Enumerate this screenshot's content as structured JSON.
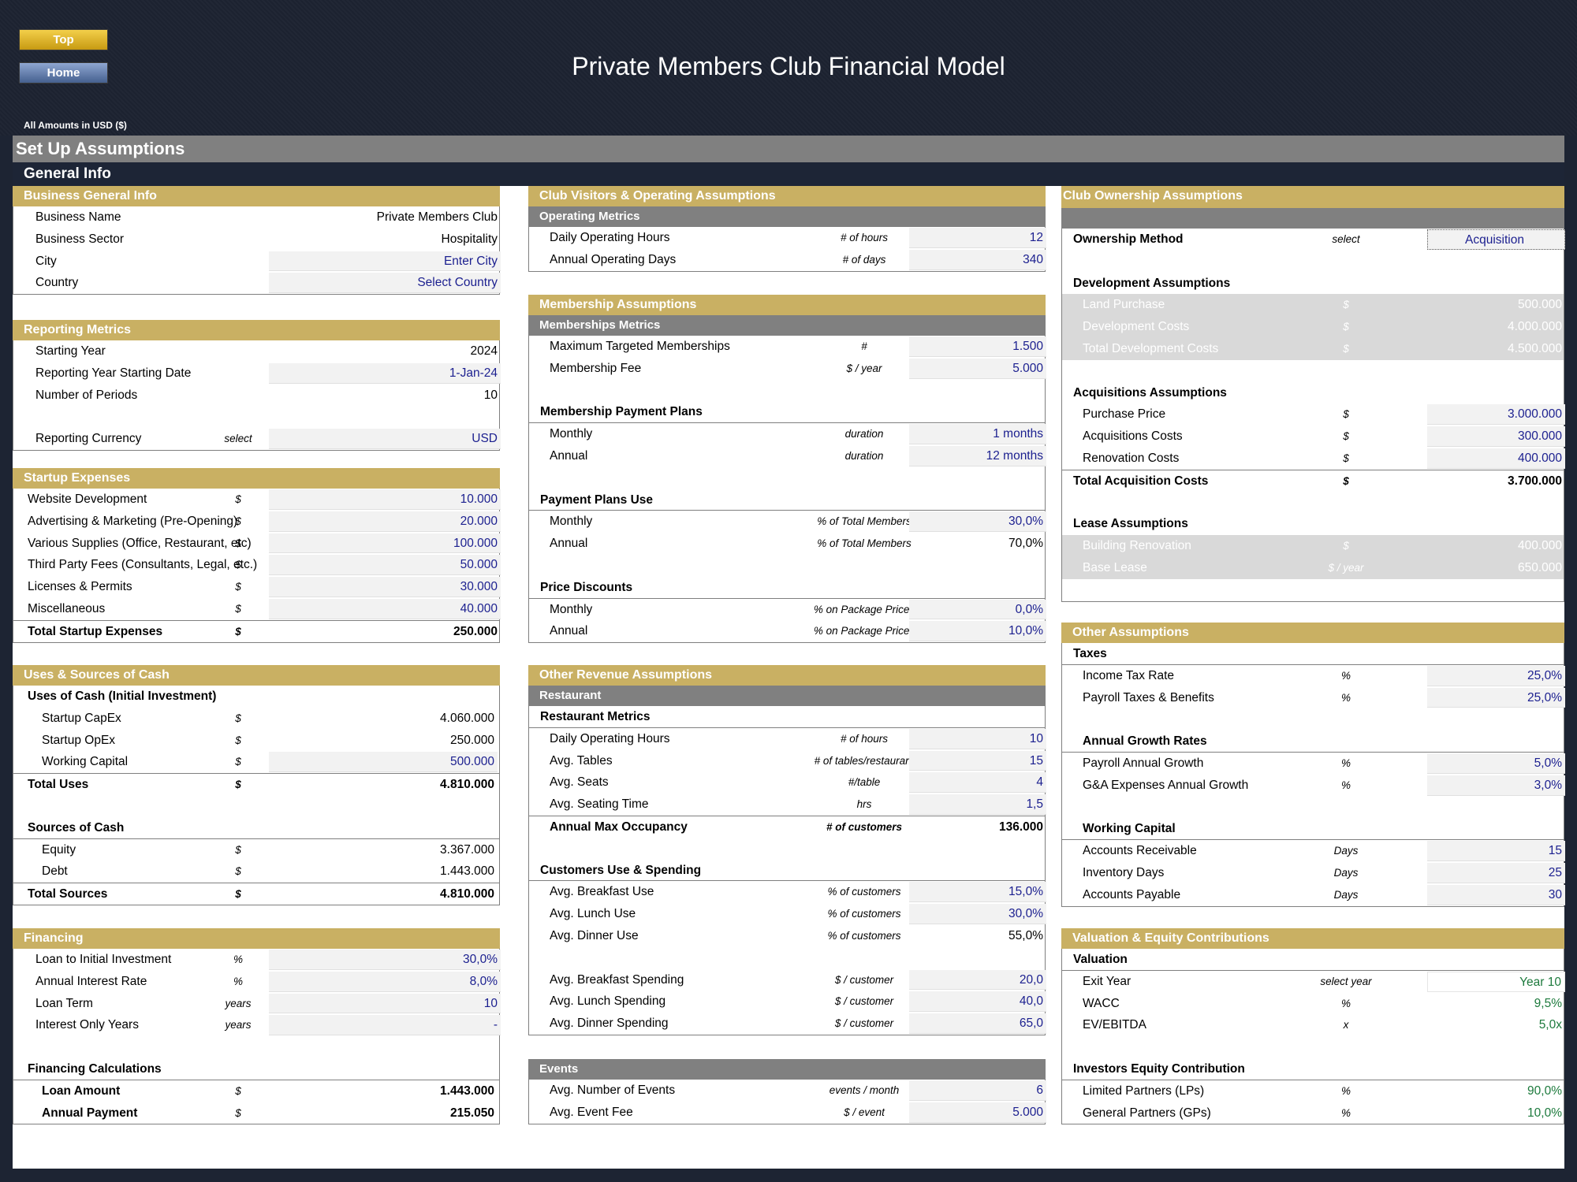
{
  "nav": {
    "top": "Top",
    "home": "Home"
  },
  "title": "Private Members Club Financial Model",
  "amounts_label": "All Amounts in  USD ($)",
  "setup": "Set Up Assumptions",
  "general": "General Info",
  "business": {
    "header": "Business General Info",
    "rows": [
      {
        "label": "Business Name",
        "value": "Private Members Club"
      },
      {
        "label": "Business Sector",
        "value": "Hospitality"
      },
      {
        "label": "City",
        "value": "Enter City"
      },
      {
        "label": "Country",
        "value": "Select Country"
      }
    ]
  },
  "reporting": {
    "header": "Reporting Metrics",
    "rows": [
      {
        "label": "Starting Year",
        "value": "2024"
      },
      {
        "label": "Reporting Year Starting Date",
        "value": "1-Jan-24"
      },
      {
        "label": "Number of Periods",
        "value": "10"
      },
      {
        "label": "Reporting Currency",
        "unit": "select",
        "value": "USD"
      }
    ]
  },
  "startup": {
    "header": "Startup Expenses",
    "rows": [
      {
        "label": "Website Development",
        "unit": "$",
        "value": "10.000"
      },
      {
        "label": "Advertising & Marketing (Pre-Opening)",
        "unit": "$",
        "value": "20.000"
      },
      {
        "label": "Various Supplies (Office, Restaurant, etc)",
        "unit": "$",
        "value": "100.000"
      },
      {
        "label": "Third Party Fees (Consultants, Legal, etc.)",
        "unit": "$",
        "value": "50.000"
      },
      {
        "label": "Licenses & Permits",
        "unit": "$",
        "value": "30.000"
      },
      {
        "label": "Miscellaneous",
        "unit": "$",
        "value": "40.000"
      },
      {
        "label": "Total Startup Expenses",
        "unit": "$",
        "value": "250.000"
      }
    ]
  },
  "uses": {
    "header": "Uses & Sources of Cash",
    "uses_title": "Uses of Cash (Initial Investment)",
    "rows": [
      {
        "label": "Startup CapEx",
        "unit": "$",
        "value": "4.060.000"
      },
      {
        "label": "Startup OpEx",
        "unit": "$",
        "value": "250.000"
      },
      {
        "label": "Working Capital",
        "unit": "$",
        "value": "500.000"
      },
      {
        "label": "Total Uses",
        "unit": "$",
        "value": "4.810.000"
      }
    ],
    "sources_title": "Sources of Cash",
    "sources": [
      {
        "label": "Equity",
        "unit": "$",
        "value": "3.367.000"
      },
      {
        "label": "Debt",
        "unit": "$",
        "value": "1.443.000"
      },
      {
        "label": "Total Sources",
        "unit": "$",
        "value": "4.810.000"
      }
    ]
  },
  "financing": {
    "header": "Financing",
    "rows": [
      {
        "label": "Loan to Initial Investment",
        "unit": "%",
        "value": "30,0%"
      },
      {
        "label": "Annual Interest Rate",
        "unit": "%",
        "value": "8,0%"
      },
      {
        "label": "Loan Term",
        "unit": "years",
        "value": "10"
      },
      {
        "label": "Interest Only Years",
        "unit": "years",
        "value": "-"
      }
    ],
    "calc_title": "Financing Calculations",
    "calc": [
      {
        "label": "Loan Amount",
        "unit": "$",
        "value": "1.443.000"
      },
      {
        "label": "Annual Payment",
        "unit": "$",
        "value": "215.050"
      }
    ]
  },
  "visitors": {
    "header": "Club Visitors & Operating Assumptions",
    "sub": "Operating Metrics",
    "rows": [
      {
        "label": "Daily Operating Hours",
        "unit": "# of hours",
        "value": "12"
      },
      {
        "label": "Annual Operating Days",
        "unit": "# of days",
        "value": "340"
      }
    ]
  },
  "membership": {
    "header": "Membership Assumptions",
    "sub": "Memberships Metrics",
    "rows": [
      {
        "label": "Maximum Targeted Memberships",
        "unit": "#",
        "value": "1.500"
      },
      {
        "label": "Membership Fee",
        "unit": "$ / year",
        "value": "5.000"
      }
    ],
    "plans_title": "Membership Payment Plans",
    "plans": [
      {
        "label": "Monthly",
        "unit": "duration",
        "value": "1 months"
      },
      {
        "label": "Annual",
        "unit": "duration",
        "value": "12 months"
      }
    ],
    "use_title": "Payment Plans Use",
    "use": [
      {
        "label": "Monthly",
        "unit": "% of Total Members",
        "value": "30,0%"
      },
      {
        "label": "Annual",
        "unit": "% of Total Members",
        "value": "70,0%"
      }
    ],
    "disc_title": "Price Discounts",
    "disc": [
      {
        "label": "Monthly",
        "unit": "% on Package Prices",
        "value": "0,0%"
      },
      {
        "label": "Annual",
        "unit": "% on Package Prices",
        "value": "10,0%"
      }
    ]
  },
  "other_rev": {
    "header": "Other Revenue Assumptions",
    "sub": "Restaurant",
    "metrics_title": "Restaurant Metrics",
    "metrics": [
      {
        "label": "Daily Operating Hours",
        "unit": "# of hours",
        "value": "10"
      },
      {
        "label": "Avg. Tables",
        "unit": "# of tables/restaurant",
        "value": "15"
      },
      {
        "label": "Avg. Seats",
        "unit": "#/table",
        "value": "4"
      },
      {
        "label": "Avg. Seating Time",
        "unit": "hrs",
        "value": "1,5"
      },
      {
        "label": "Annual Max Occupancy",
        "unit": "# of customers",
        "value": "136.000"
      }
    ],
    "cust_title": "Customers Use & Spending",
    "cust": [
      {
        "label": "Avg. Breakfast Use",
        "unit": "% of customers",
        "value": "15,0%"
      },
      {
        "label": "Avg. Lunch Use",
        "unit": "% of customers",
        "value": "30,0%"
      },
      {
        "label": "Avg. Dinner Use",
        "unit": "% of customers",
        "value": "55,0%"
      }
    ],
    "spend": [
      {
        "label": "Avg. Breakfast Spending",
        "unit": "$ / customer",
        "value": "20,0"
      },
      {
        "label": "Avg. Lunch Spending",
        "unit": "$ / customer",
        "value": "40,0"
      },
      {
        "label": "Avg. Dinner Spending",
        "unit": "$ / customer",
        "value": "65,0"
      }
    ],
    "events_title": "Events",
    "events": [
      {
        "label": "Avg. Number of Events",
        "unit": "events / month",
        "value": "6"
      },
      {
        "label": "Avg. Event Fee",
        "unit": "$ / event",
        "value": "5.000"
      }
    ]
  },
  "ownership": {
    "header": "Club Ownership Assumptions",
    "method": {
      "label": "Ownership Method",
      "unit": "select",
      "value": "Acquisition"
    },
    "dev_title": "Development Assumptions",
    "dev": [
      {
        "label": "Land Purchase",
        "unit": "$",
        "value": "500.000"
      },
      {
        "label": "Development Costs",
        "unit": "$",
        "value": "4.000.000"
      },
      {
        "label": "Total Development Costs",
        "unit": "$",
        "value": "4.500.000"
      }
    ],
    "acq_title": "Acquisitions Assumptions",
    "acq": [
      {
        "label": "Purchase Price",
        "unit": "$",
        "value": "3.000.000"
      },
      {
        "label": "Acquisitions Costs",
        "unit": "$",
        "value": "300.000"
      },
      {
        "label": "Renovation Costs",
        "unit": "$",
        "value": "400.000"
      },
      {
        "label": "Total Acquisition Costs",
        "unit": "$",
        "value": "3.700.000"
      }
    ],
    "lease_title": "Lease Assumptions",
    "lease": [
      {
        "label": "Building Renovation",
        "unit": "$",
        "value": "400.000"
      },
      {
        "label": "Base Lease",
        "unit": "$ / year",
        "value": "650.000"
      }
    ]
  },
  "other": {
    "header": "Other Assumptions",
    "tax_title": "Taxes",
    "tax": [
      {
        "label": "Income Tax Rate",
        "unit": "%",
        "value": "25,0%"
      },
      {
        "label": "Payroll Taxes & Benefits",
        "unit": "%",
        "value": "25,0%"
      }
    ],
    "growth_title": "Annual Growth Rates",
    "growth": [
      {
        "label": "Payroll Annual Growth",
        "unit": "%",
        "value": "5,0%"
      },
      {
        "label": "G&A Expenses Annual Growth",
        "unit": "%",
        "value": "3,0%"
      }
    ],
    "wc_title": "Working Capital",
    "wc": [
      {
        "label": "Accounts Receivable",
        "unit": "Days",
        "value": "15"
      },
      {
        "label": "Inventory Days",
        "unit": "Days",
        "value": "25"
      },
      {
        "label": "Accounts Payable",
        "unit": "Days",
        "value": "30"
      }
    ]
  },
  "valuation": {
    "header": "Valuation & Equity Contributions",
    "val_title": "Valuation",
    "val": [
      {
        "label": "Exit Year",
        "unit": "select year",
        "value": "Year 10"
      },
      {
        "label": "WACC",
        "unit": "%",
        "value": "9,5%"
      },
      {
        "label": "EV/EBITDA",
        "unit": "x",
        "value": "5,0x"
      }
    ],
    "inv_title": "Investors Equity Contribution",
    "inv": [
      {
        "label": "Limited Partners (LPs)",
        "unit": "%",
        "value": "90,0%"
      },
      {
        "label": "General Partners (GPs)",
        "unit": "%",
        "value": "10,0%"
      }
    ]
  },
  "colors": {
    "gold": "#c9b063",
    "grey": "#808080",
    "navy": "#1d2536",
    "input_text": "#1b1f8f",
    "green": "#1d7a3d"
  }
}
